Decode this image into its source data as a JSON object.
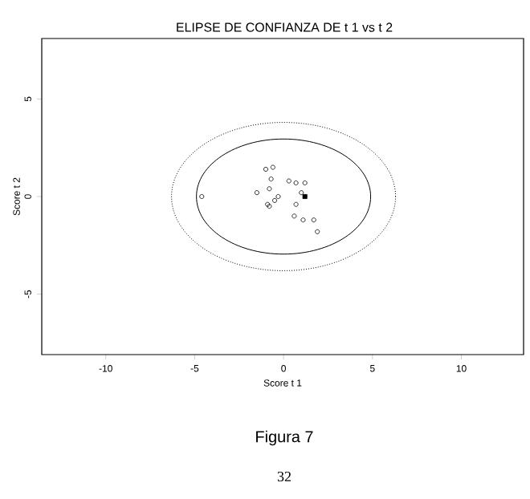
{
  "chart_data": {
    "type": "scatter",
    "title": "ELIPSE DE CONFIANZA DE  t 1 vs  t 2",
    "xlabel": "Score  t 1",
    "ylabel": "Score  t 2",
    "xlim": [
      -13.6,
      13.5
    ],
    "ylim": [
      -8.1,
      8.1
    ],
    "xticks": [
      -10,
      -5,
      0,
      5,
      10
    ],
    "yticks": [
      -5,
      0,
      5
    ],
    "annotations": [
      "Figura 7",
      "32"
    ],
    "series": [
      {
        "marker": "circle",
        "color": "#000000",
        "x": [
          -4.6,
          -1.0,
          -0.6,
          -0.7,
          -1.5,
          -0.8,
          -0.9,
          -0.8,
          -0.5,
          -0.3,
          0.3,
          0.7,
          1.2,
          1.0,
          0.7,
          0.6,
          1.1,
          1.7,
          1.9
        ],
        "values": [
          0.0,
          1.4,
          1.5,
          0.9,
          0.2,
          0.4,
          -0.4,
          -0.5,
          -0.2,
          0.0,
          0.8,
          0.7,
          0.7,
          0.2,
          -0.4,
          -1.0,
          -1.2,
          -1.2,
          -1.8
        ]
      },
      {
        "marker": "square",
        "color": "#000000",
        "x": [
          1.2
        ],
        "values": [
          0.0
        ]
      }
    ]
  }
}
